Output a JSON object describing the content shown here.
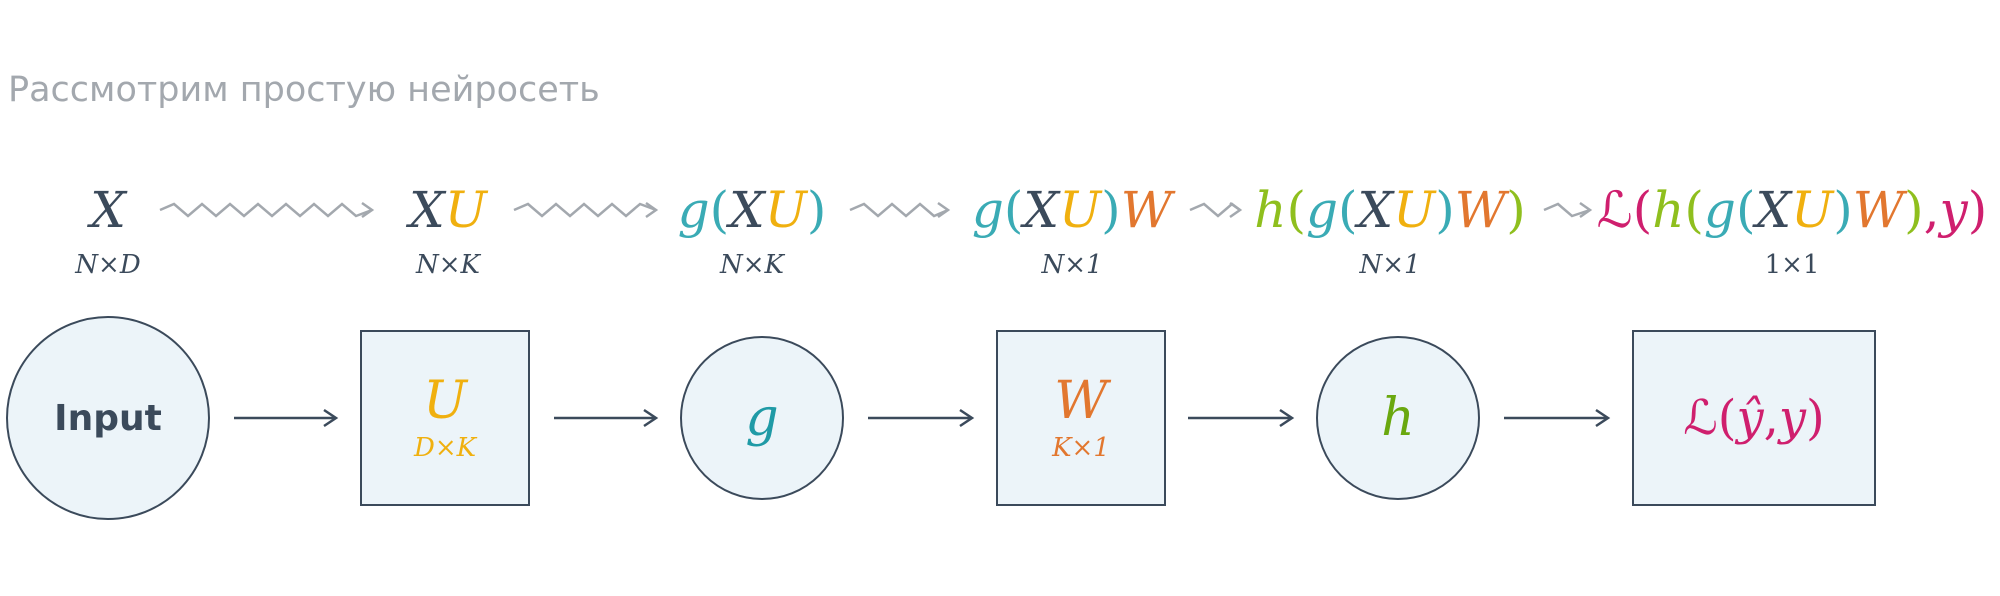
{
  "title": "Рассмотрим простую нейросеть",
  "colors": {
    "ink": "#3b4a5b",
    "u": "#f0b00f",
    "g": "#3aabb5",
    "w": "#e2772f",
    "h": "#8fbf1e",
    "loss": "#cf1f6e",
    "node_fill": "#ecf4f9",
    "squiggle": "#a3a8ae"
  },
  "expressions": [
    {
      "text": "X",
      "dim": "N×D"
    },
    {
      "text": "XU",
      "dim": "N×K"
    },
    {
      "text": "g(XU)",
      "dim": "N×K"
    },
    {
      "text": "g(XU)W",
      "dim": "N×1"
    },
    {
      "text": "h(g(XU)W)",
      "dim": "N×1"
    },
    {
      "text": "ℒ(h(g(XU)W),y)",
      "dim": "1×1"
    }
  ],
  "nodes": [
    {
      "label": "Input"
    },
    {
      "symbol": "U",
      "dim": "D×K"
    },
    {
      "symbol": "g"
    },
    {
      "symbol": "W",
      "dim": "K×1"
    },
    {
      "symbol": "h"
    },
    {
      "symbol": "ℒ(ŷ,y)",
      "parts": [
        "ℒ",
        "(",
        "ŷ",
        ",",
        "y",
        ")"
      ]
    }
  ]
}
